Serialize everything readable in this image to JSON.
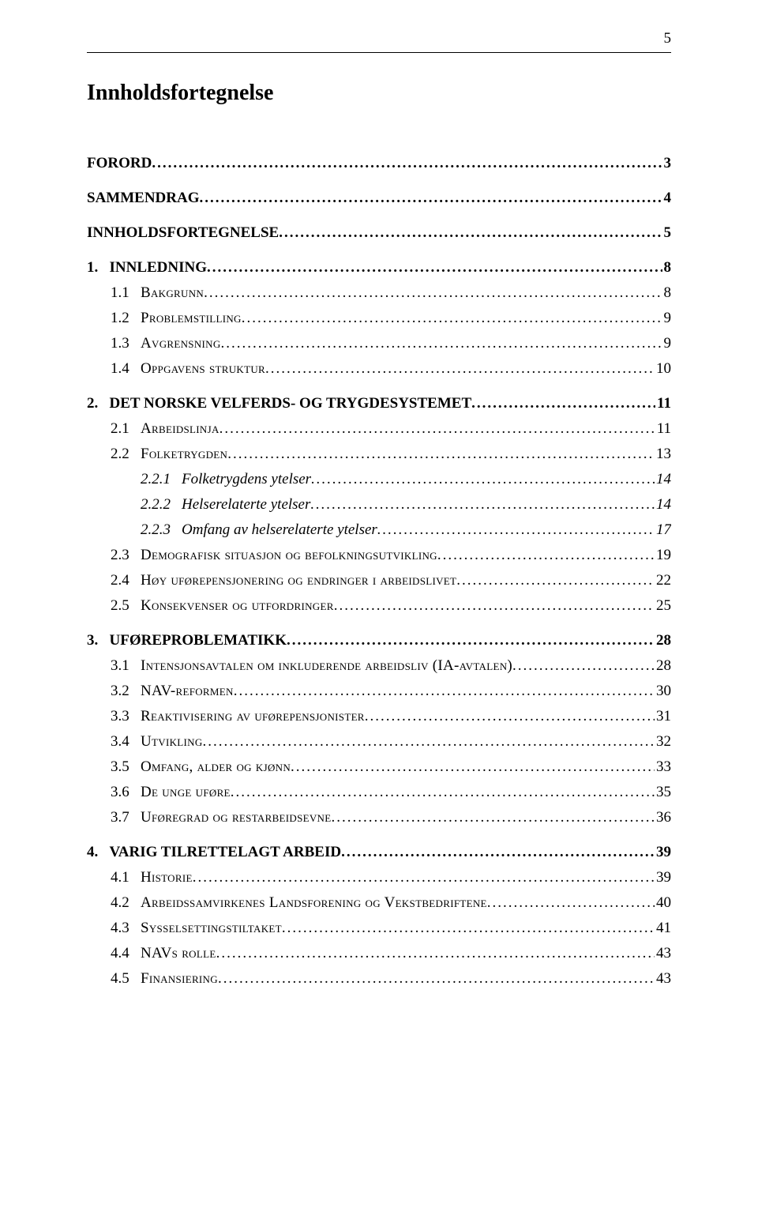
{
  "page_number": "5",
  "title": "Innholdsfortegnelse",
  "entries": [
    {
      "level": 0,
      "label": "FORORD",
      "page": "3",
      "first": true
    },
    {
      "level": 0,
      "label": "SAMMENDRAG",
      "page": "4"
    },
    {
      "level": 0,
      "label": "INNHOLDSFORTEGNELSE",
      "page": "5"
    },
    {
      "level": 0,
      "label": "1.   INNLEDNING",
      "page": "8"
    },
    {
      "level": 1,
      "num": "1.1",
      "label": "Bakgrunn",
      "page": "8"
    },
    {
      "level": 1,
      "num": "1.2",
      "label": "Problemstilling",
      "page": "9"
    },
    {
      "level": 1,
      "num": "1.3",
      "label": "Avgrensning",
      "page": "9"
    },
    {
      "level": 1,
      "num": "1.4",
      "label": "Oppgavens struktur",
      "page": "10"
    },
    {
      "level": 0,
      "label": "2.   DET NORSKE VELFERDS- OG TRYGDESYSTEMET",
      "page": "11"
    },
    {
      "level": 1,
      "num": "2.1",
      "label": "Arbeidslinja",
      "page": "11"
    },
    {
      "level": 1,
      "num": "2.2",
      "label": "Folketrygden",
      "page": "13"
    },
    {
      "level": 2,
      "num": "2.2.1",
      "label": "Folketrygdens ytelser",
      "page": "14"
    },
    {
      "level": 2,
      "num": "2.2.2",
      "label": "Helserelaterte ytelser",
      "page": "14"
    },
    {
      "level": 2,
      "num": "2.2.3",
      "label": "Omfang av helserelaterte ytelser",
      "page": "17"
    },
    {
      "level": 1,
      "num": "2.3",
      "label": "Demografisk situasjon og befolkningsutvikling",
      "page": "19"
    },
    {
      "level": 1,
      "num": "2.4",
      "label": "Høy uførepensjonering og endringer i arbeidslivet",
      "page": "22"
    },
    {
      "level": 1,
      "num": "2.5",
      "label": "Konsekvenser og utfordringer",
      "page": "25"
    },
    {
      "level": 0,
      "label": "3.   UFØREPROBLEMATIKK",
      "page": "28"
    },
    {
      "level": 1,
      "num": "3.1",
      "label": "Intensjonsavtalen om inkluderende arbeidsliv (IA-avtalen)",
      "page": "28"
    },
    {
      "level": 1,
      "num": "3.2",
      "label": "NAV-reformen",
      "page": "30"
    },
    {
      "level": 1,
      "num": "3.3",
      "label": "Reaktivisering av uførepensjonister",
      "page": "31"
    },
    {
      "level": 1,
      "num": "3.4",
      "label": "Utvikling",
      "page": "32"
    },
    {
      "level": 1,
      "num": "3.5",
      "label": "Omfang, alder og kjønn",
      "page": "33"
    },
    {
      "level": 1,
      "num": "3.6",
      "label": "De unge uføre",
      "page": "35"
    },
    {
      "level": 1,
      "num": "3.7",
      "label": "Uføregrad og restarbeidsevne",
      "page": "36"
    },
    {
      "level": 0,
      "label": "4.   VARIG TILRETTELAGT ARBEID",
      "page": "39"
    },
    {
      "level": 1,
      "num": "4.1",
      "label": "Historie",
      "page": "39"
    },
    {
      "level": 1,
      "num": "4.2",
      "label": "Arbeidssamvirkenes Landsforening og Vekstbedriftene",
      "page": "40"
    },
    {
      "level": 1,
      "num": "4.3",
      "label": "Sysselsettingstiltaket",
      "page": "41"
    },
    {
      "level": 1,
      "num": "4.4",
      "label": "NAVs rolle",
      "page": "43"
    },
    {
      "level": 1,
      "num": "4.5",
      "label": "Finansiering",
      "page": "43"
    }
  ]
}
